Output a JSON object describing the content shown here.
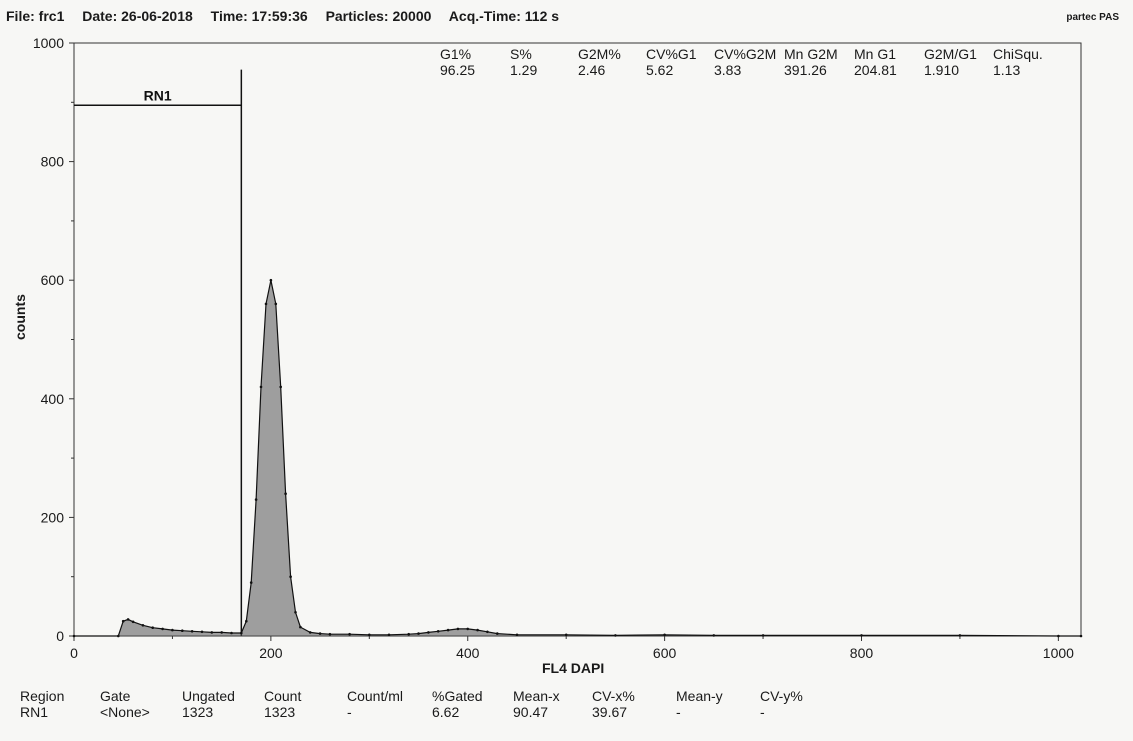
{
  "header": {
    "file": "File: frc1",
    "date": "Date: 26-06-2018",
    "time": "Time: 17:59:36",
    "particles": "Particles: 20000",
    "acq_time": "Acq.-Time: 112 s",
    "brand": "partec PAS"
  },
  "stats": [
    {
      "label": "G1%",
      "value": "96.25"
    },
    {
      "label": "S%",
      "value": "1.29"
    },
    {
      "label": "G2M%",
      "value": "2.46"
    },
    {
      "label": "CV%G1",
      "value": "5.62"
    },
    {
      "label": "CV%G2M",
      "value": "3.83"
    },
    {
      "label": "Mn G2M",
      "value": "391.26"
    },
    {
      "label": "Mn G1",
      "value": "204.81"
    },
    {
      "label": "G2M/G1",
      "value": "1.910"
    },
    {
      "label": "ChiSqu.",
      "value": "1.13"
    }
  ],
  "region": {
    "name": "RN1",
    "start": 0,
    "end": 170,
    "level": 895
  },
  "footer": [
    {
      "label": "Region",
      "value": "RN1"
    },
    {
      "label": "Gate",
      "value": "<None>"
    },
    {
      "label": "Ungated",
      "value": "1323"
    },
    {
      "label": "Count",
      "value": "1323"
    },
    {
      "label": "Count/ml",
      "value": "-"
    },
    {
      "label": "%Gated",
      "value": "6.62"
    },
    {
      "label": "Mean-x",
      "value": "90.47"
    },
    {
      "label": "CV-x%",
      "value": "39.67"
    },
    {
      "label": "Mean-y",
      "value": "-"
    },
    {
      "label": "CV-y%",
      "value": "-"
    }
  ],
  "colors": {
    "fill": "#555555",
    "line": "#111111"
  },
  "chart_data": {
    "type": "area",
    "xlabel": "FL4  DAPI",
    "ylabel": "counts",
    "xlim": [
      0,
      1023
    ],
    "ylim": [
      0,
      1000
    ],
    "xticks": [
      0,
      200,
      400,
      600,
      800,
      1000
    ],
    "yticks": [
      0,
      200,
      400,
      600,
      800,
      1000
    ],
    "grid": false,
    "series": [
      {
        "x": [
          0,
          45,
          50,
          55,
          60,
          70,
          80,
          90,
          100,
          110,
          120,
          130,
          140,
          150,
          160,
          170,
          175,
          180,
          185,
          190,
          195,
          200,
          205,
          210,
          215,
          220,
          225,
          230,
          240,
          250,
          260,
          280,
          300,
          320,
          340,
          350,
          360,
          370,
          380,
          390,
          400,
          410,
          420,
          430,
          450,
          500,
          550,
          600,
          650,
          700,
          800,
          900,
          1000,
          1023
        ],
        "y": [
          0,
          0,
          25,
          28,
          24,
          18,
          14,
          12,
          10,
          9,
          8,
          7,
          6,
          6,
          5,
          5,
          25,
          90,
          230,
          420,
          560,
          600,
          560,
          420,
          240,
          100,
          40,
          15,
          6,
          4,
          3,
          3,
          2,
          2,
          3,
          4,
          6,
          8,
          10,
          12,
          12,
          10,
          7,
          4,
          2,
          2,
          1,
          2,
          1,
          1,
          1,
          1,
          0,
          0
        ]
      }
    ]
  }
}
